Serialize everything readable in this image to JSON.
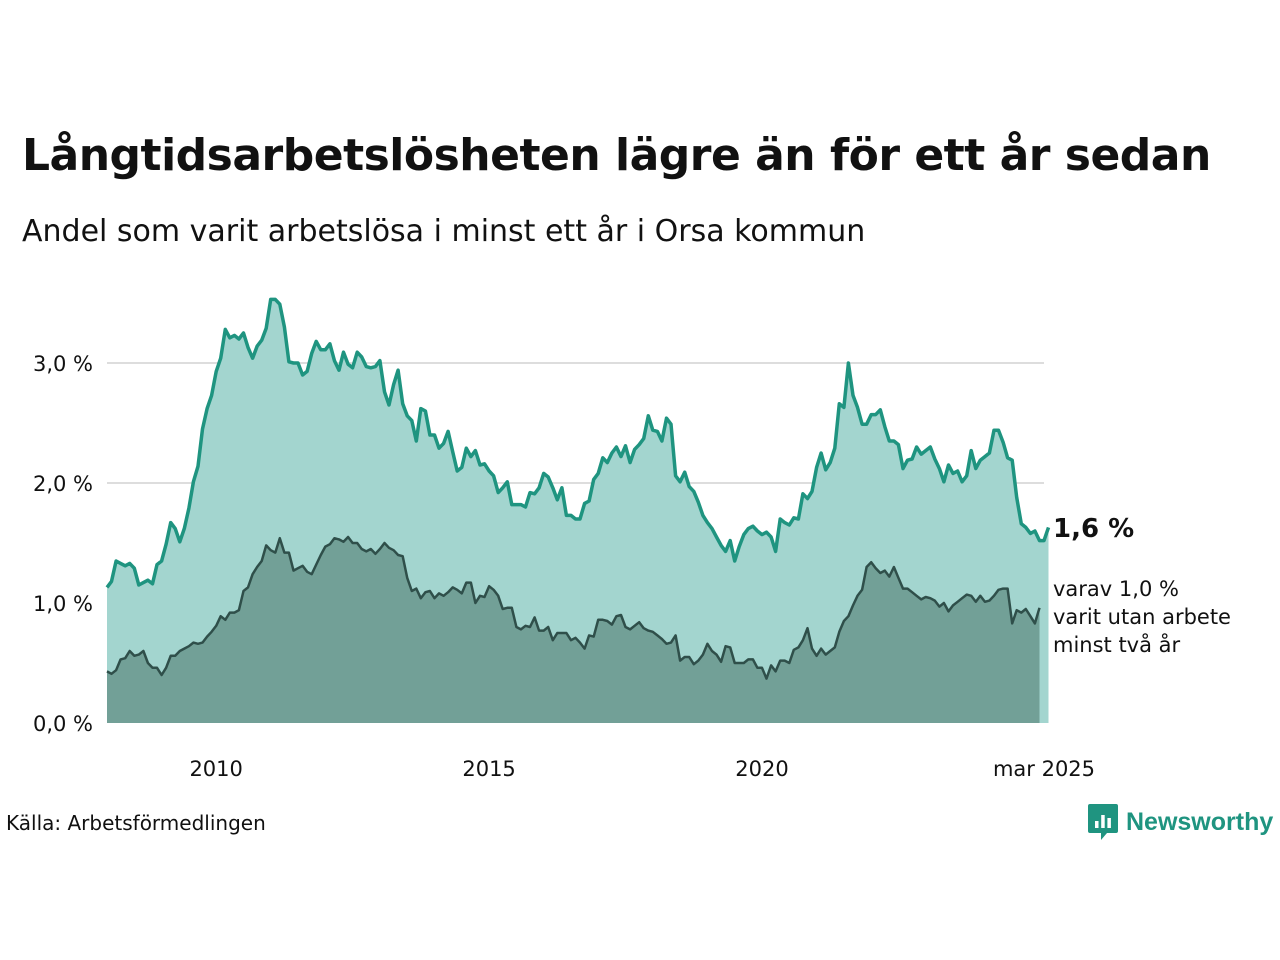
{
  "title": "Långtidsarbetslösheten lägre än för ett år sedan",
  "subtitle": "Andel som varit arbetslösa i minst ett år i Orsa kommun",
  "source": "Källa: Arbetsförmedlingen",
  "brand": {
    "name": "Newsworthy",
    "icon": "newsworthy-logo-icon",
    "color": "#1f9480"
  },
  "colors": {
    "main_line": "#1f9480",
    "main_fill": "#a3d5cf",
    "sub_line": "#2f4f4a",
    "sub_fill": "#72a097",
    "grid": "#dddddd"
  },
  "labels": {
    "main_value": "1,6 %",
    "sub_line1": "varav 1,0 %",
    "sub_line2": "varit utan arbete",
    "sub_line3": "minst två år"
  },
  "chart_data": {
    "type": "area",
    "x_start": "2008-01",
    "x_end": "2025-03",
    "x_step": "month",
    "x_tick_labels": [
      "2010",
      "2015",
      "2020",
      "mar 2025"
    ],
    "y_tick_labels": [
      "0,0 %",
      "1,0 %",
      "2,0 %",
      "3,0 %"
    ],
    "y_ticks": [
      0,
      1,
      2,
      3
    ],
    "ylim": [
      0,
      3.6
    ],
    "grid": true,
    "series": [
      {
        "key": "minst_ett_ar",
        "values": [
          1.13,
          1.18,
          1.35,
          1.33,
          1.31,
          1.33,
          1.29,
          1.15,
          1.17,
          1.19,
          1.16,
          1.32,
          1.35,
          1.49,
          1.67,
          1.62,
          1.51,
          1.62,
          1.79,
          2.01,
          2.14,
          2.45,
          2.62,
          2.73,
          2.93,
          3.04,
          3.28,
          3.21,
          3.23,
          3.2,
          3.25,
          3.13,
          3.04,
          3.14,
          3.19,
          3.29,
          3.53,
          3.53,
          3.49,
          3.3,
          3.01,
          3.0,
          3.0,
          2.9,
          2.93,
          3.08,
          3.18,
          3.11,
          3.11,
          3.16,
          3.02,
          2.94,
          3.09,
          2.99,
          2.96,
          3.09,
          3.05,
          2.97,
          2.96,
          2.97,
          3.02,
          2.76,
          2.65,
          2.82,
          2.94,
          2.66,
          2.56,
          2.52,
          2.35,
          2.62,
          2.6,
          2.4,
          2.4,
          2.29,
          2.33,
          2.43,
          2.26,
          2.1,
          2.13,
          2.29,
          2.22,
          2.27,
          2.15,
          2.16,
          2.1,
          2.06,
          1.92,
          1.96,
          2.01,
          1.82,
          1.82,
          1.82,
          1.8,
          1.92,
          1.91,
          1.96,
          2.08,
          2.05,
          1.96,
          1.86,
          1.96,
          1.73,
          1.73,
          1.7,
          1.7,
          1.83,
          1.85,
          2.03,
          2.08,
          2.21,
          2.17,
          2.25,
          2.3,
          2.22,
          2.31,
          2.17,
          2.28,
          2.32,
          2.37,
          2.56,
          2.44,
          2.43,
          2.35,
          2.54,
          2.49,
          2.06,
          2.01,
          2.09,
          1.97,
          1.93,
          1.84,
          1.73,
          1.67,
          1.62,
          1.55,
          1.48,
          1.43,
          1.52,
          1.35,
          1.47,
          1.57,
          1.62,
          1.64,
          1.6,
          1.57,
          1.59,
          1.55,
          1.43,
          1.7,
          1.67,
          1.65,
          1.71,
          1.7,
          1.91,
          1.87,
          1.93,
          2.13,
          2.25,
          2.11,
          2.17,
          2.29,
          2.66,
          2.63,
          3.0,
          2.73,
          2.63,
          2.49,
          2.49,
          2.57,
          2.57,
          2.61,
          2.47,
          2.35,
          2.35,
          2.32,
          2.12,
          2.19,
          2.2,
          2.3,
          2.24,
          2.27,
          2.3,
          2.2,
          2.12,
          2.01,
          2.15,
          2.08,
          2.1,
          2.01,
          2.06,
          2.27,
          2.12,
          2.19,
          2.22,
          2.25,
          2.44,
          2.44,
          2.34,
          2.21,
          2.19,
          1.88,
          1.66,
          1.63,
          1.58,
          1.6,
          1.52,
          1.52,
          1.63
        ]
      },
      {
        "key": "minst_tva_ar",
        "values": [
          0.43,
          0.41,
          0.44,
          0.53,
          0.54,
          0.6,
          0.56,
          0.57,
          0.6,
          0.5,
          0.46,
          0.46,
          0.4,
          0.46,
          0.56,
          0.56,
          0.6,
          0.62,
          0.64,
          0.67,
          0.66,
          0.67,
          0.72,
          0.76,
          0.81,
          0.89,
          0.86,
          0.92,
          0.92,
          0.94,
          1.1,
          1.13,
          1.24,
          1.3,
          1.35,
          1.48,
          1.44,
          1.42,
          1.54,
          1.42,
          1.42,
          1.27,
          1.29,
          1.31,
          1.26,
          1.24,
          1.32,
          1.4,
          1.47,
          1.49,
          1.54,
          1.53,
          1.51,
          1.55,
          1.5,
          1.5,
          1.45,
          1.43,
          1.45,
          1.41,
          1.45,
          1.5,
          1.46,
          1.44,
          1.4,
          1.39,
          1.21,
          1.1,
          1.12,
          1.04,
          1.09,
          1.1,
          1.04,
          1.08,
          1.06,
          1.09,
          1.13,
          1.11,
          1.08,
          1.17,
          1.17,
          1.0,
          1.06,
          1.05,
          1.14,
          1.11,
          1.06,
          0.95,
          0.96,
          0.96,
          0.8,
          0.78,
          0.81,
          0.8,
          0.88,
          0.77,
          0.77,
          0.8,
          0.69,
          0.75,
          0.75,
          0.75,
          0.69,
          0.71,
          0.67,
          0.62,
          0.73,
          0.72,
          0.86,
          0.86,
          0.85,
          0.82,
          0.89,
          0.9,
          0.8,
          0.78,
          0.81,
          0.84,
          0.79,
          0.77,
          0.76,
          0.73,
          0.7,
          0.66,
          0.67,
          0.73,
          0.52,
          0.55,
          0.55,
          0.49,
          0.52,
          0.57,
          0.66,
          0.6,
          0.57,
          0.51,
          0.64,
          0.63,
          0.5,
          0.5,
          0.5,
          0.53,
          0.53,
          0.46,
          0.46,
          0.37,
          0.48,
          0.43,
          0.52,
          0.52,
          0.5,
          0.61,
          0.63,
          0.69,
          0.79,
          0.62,
          0.56,
          0.62,
          0.57,
          0.6,
          0.63,
          0.76,
          0.85,
          0.89,
          0.98,
          1.06,
          1.11,
          1.3,
          1.34,
          1.29,
          1.25,
          1.27,
          1.22,
          1.3,
          1.21,
          1.12,
          1.12,
          1.09,
          1.06,
          1.03,
          1.05,
          1.04,
          1.02,
          0.97,
          1.0,
          0.93,
          0.98,
          1.01,
          1.04,
          1.07,
          1.06,
          1.01,
          1.06,
          1.01,
          1.02,
          1.06,
          1.11,
          1.12,
          1.12,
          0.83,
          0.94,
          0.92,
          0.95,
          0.89,
          0.83,
          0.96
        ]
      }
    ]
  }
}
